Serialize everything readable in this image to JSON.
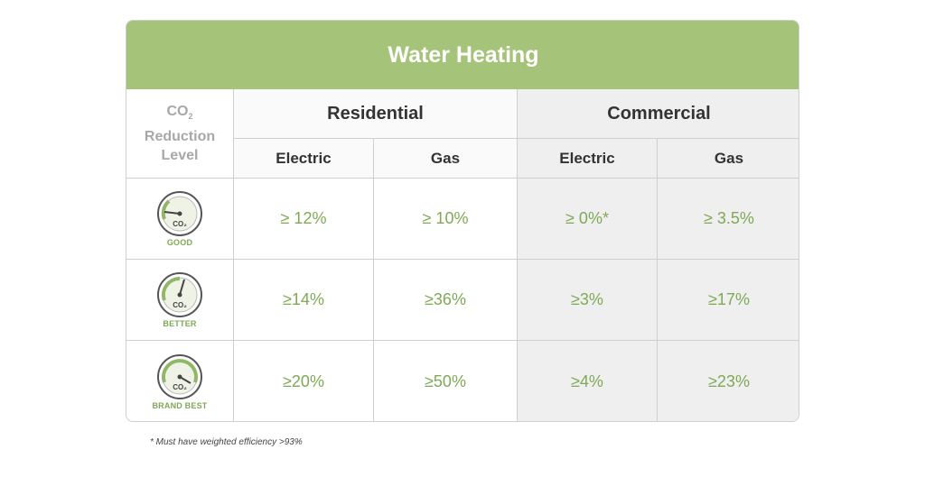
{
  "title": "Water Heating",
  "corner_label": {
    "line1": "CO",
    "subscript": "2",
    "line2": "Reduction",
    "line3": "Level"
  },
  "groups": [
    {
      "label": "Residential"
    },
    {
      "label": "Commercial"
    }
  ],
  "subheaders": [
    "Electric",
    "Gas",
    "Electric",
    "Gas"
  ],
  "rows": [
    {
      "level": "GOOD",
      "gauge_text": "CO2",
      "needle": "low",
      "values": [
        "≥ 12%",
        "≥ 10%",
        "≥ 0%*",
        "≥ 3.5%"
      ]
    },
    {
      "level": "BETTER",
      "gauge_text": "CO2",
      "needle": "high",
      "values": [
        "≥14%",
        "≥36%",
        "≥3%",
        "≥17%"
      ]
    },
    {
      "level": "BRAND BEST",
      "gauge_text": "CO2",
      "needle": "max",
      "values": [
        "≥20%",
        "≥50%",
        "≥4%",
        "≥23%"
      ]
    }
  ],
  "footnote": "* Must have weighted efficiency >93%",
  "colors": {
    "banner": "#a5c47a",
    "value_text": "#7fa955",
    "shaded_column": "#efefef"
  }
}
